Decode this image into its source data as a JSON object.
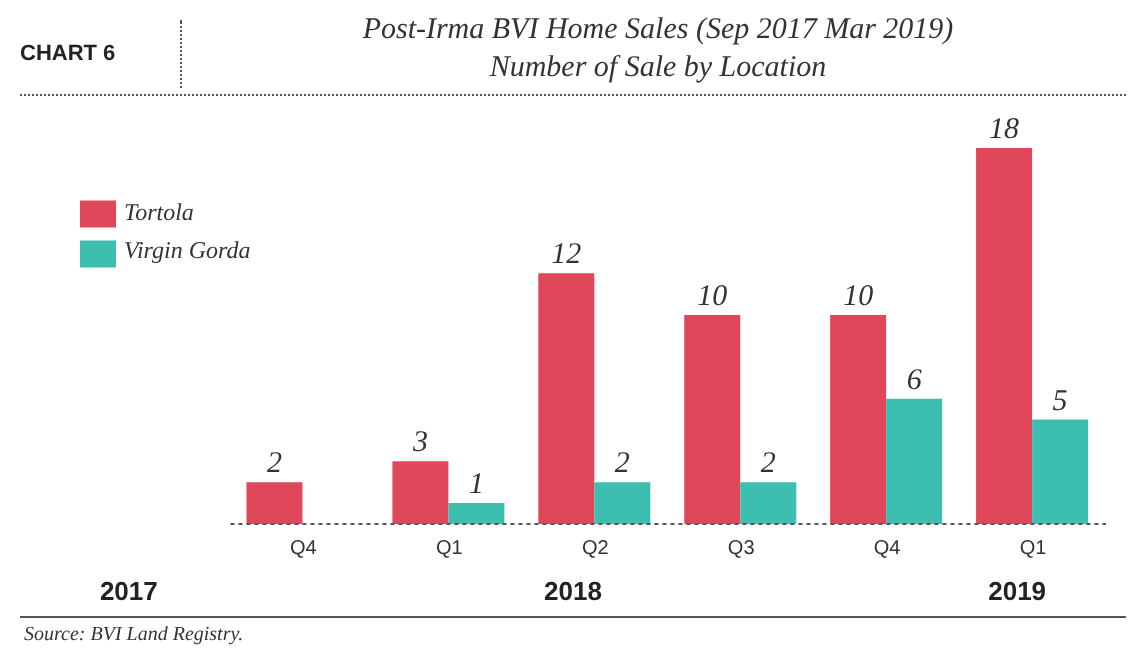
{
  "chart_data": {
    "type": "bar",
    "title": "Post-Irma BVI Home Sales (Sep 2017 Mar 2019)",
    "subtitle": "Number of Sale by Location",
    "categories": [
      "Q4",
      "Q1",
      "Q2",
      "Q3",
      "Q4",
      "Q1"
    ],
    "series": [
      {
        "name": "Tortola",
        "color": "#e0475a",
        "values": [
          2,
          3,
          12,
          10,
          10,
          18
        ]
      },
      {
        "name": "Virgin Gorda",
        "color": "#3cbfae",
        "values": [
          null,
          1,
          2,
          2,
          6,
          5
        ]
      }
    ],
    "data_labels": true,
    "legend": "top left",
    "grid": false,
    "annotations": [
      "CHART 6",
      "2017",
      "2018",
      "2019",
      "Source: BVI Land Registry."
    ]
  }
}
